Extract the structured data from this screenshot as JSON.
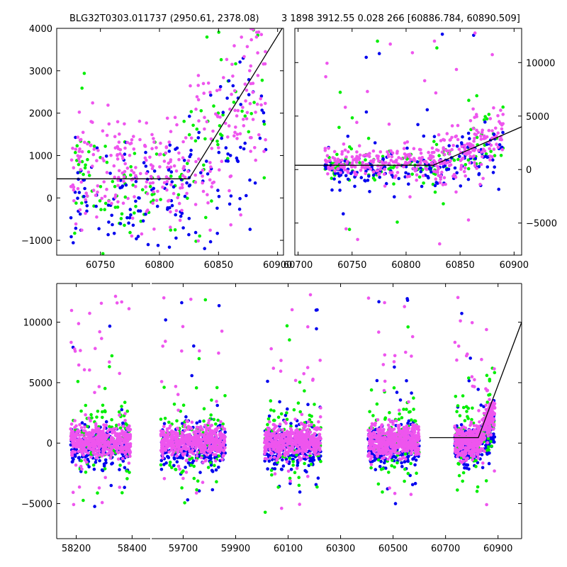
{
  "title_left": "BLG32T0303.011737 (2950.61, 2378.08)",
  "title_right": "3 1898 3912.55 0.028 266 [60886.784, 60890.509]",
  "colors": {
    "green": "#00ee00",
    "blue": "#0000ee",
    "pink": "#ee55ee",
    "model": "#000000"
  },
  "chart_data": [
    {
      "name": "top-left",
      "type": "scatter",
      "xlim": [
        60713,
        60905
      ],
      "ylim": [
        -1350,
        4000
      ],
      "xticks": [
        60750,
        60800,
        60850,
        60900
      ],
      "yticks": [
        -1000,
        0,
        1000,
        2000,
        3000,
        4000
      ],
      "ytick_side": "left",
      "model_line": {
        "x": [
          60713,
          60825,
          60905
        ],
        "y": [
          450,
          450,
          4050
        ]
      },
      "scatter": {
        "xmin": 60725,
        "xmax": 60890,
        "seed": 11,
        "baseline": 450,
        "break": 60825,
        "slope": 40,
        "noise": 700,
        "counts": {
          "green": 130,
          "blue": 170,
          "pink": 330
        }
      }
    },
    {
      "name": "top-right",
      "type": "scatter",
      "xlim": [
        60697,
        60907
      ],
      "ylim": [
        -8000,
        13200
      ],
      "xticks": [
        60700,
        60750,
        60800,
        60850,
        60900
      ],
      "yticks": [
        -5000,
        0,
        5000,
        10000
      ],
      "ytick_side": "right",
      "model_line": {
        "x": [
          60697,
          60825,
          60907
        ],
        "y": [
          400,
          400,
          4000
        ]
      },
      "scatter": {
        "xmin": 60725,
        "xmax": 60890,
        "seed": 23,
        "baseline": 400,
        "break": 60825,
        "slope": 40,
        "noise": 700,
        "counts": {
          "green": 140,
          "blue": 190,
          "pink": 380
        },
        "outliers": 55
      }
    },
    {
      "name": "bottom",
      "type": "scatter",
      "ylim": [
        -7900,
        13200
      ],
      "yticks": [
        -5000,
        0,
        5000,
        10000
      ],
      "ytick_side": "left",
      "segments": [
        {
          "xlim": [
            58130,
            58465
          ],
          "xticks": [
            58200,
            58400
          ],
          "range": [
            58180,
            58395
          ]
        },
        {
          "xlim": [
            59580,
            60990
          ],
          "xticks": [
            59700,
            59900,
            60100,
            60300,
            60500,
            60700,
            60900
          ],
          "ranges": [
            [
              59615,
              59860
            ],
            [
              60010,
              60225
            ],
            [
              60405,
              60600
            ],
            [
              60735,
              60888
            ]
          ]
        }
      ],
      "model_line": {
        "x": [
          60638,
          60825,
          60990
        ],
        "y": [
          450,
          450,
          10000
        ]
      }
    }
  ]
}
